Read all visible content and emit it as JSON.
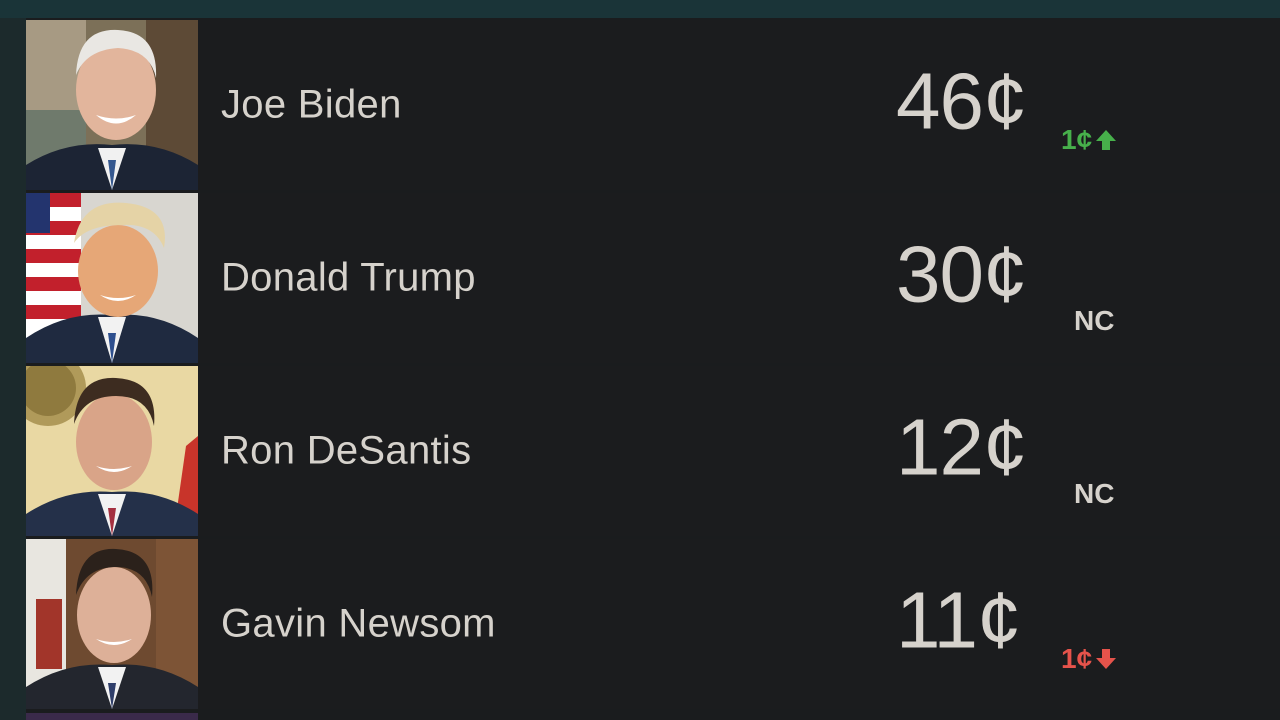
{
  "candidates": [
    {
      "name": "Joe Biden",
      "price": "46¢",
      "change": "1¢",
      "direction": "up",
      "photo": "joe-biden-portrait"
    },
    {
      "name": "Donald Trump",
      "price": "30¢",
      "change": "NC",
      "direction": "none",
      "photo": "donald-trump-portrait"
    },
    {
      "name": "Ron DeSantis",
      "price": "12¢",
      "change": "NC",
      "direction": "none",
      "photo": "ron-desantis-portrait"
    },
    {
      "name": "Gavin Newsom",
      "price": "11¢",
      "change": "1¢",
      "direction": "down",
      "photo": "gavin-newsom-portrait"
    }
  ],
  "colors": {
    "up": "#47b04b",
    "down": "#e5534b",
    "text": "#d6d2cc",
    "background": "#1b1c1e"
  }
}
